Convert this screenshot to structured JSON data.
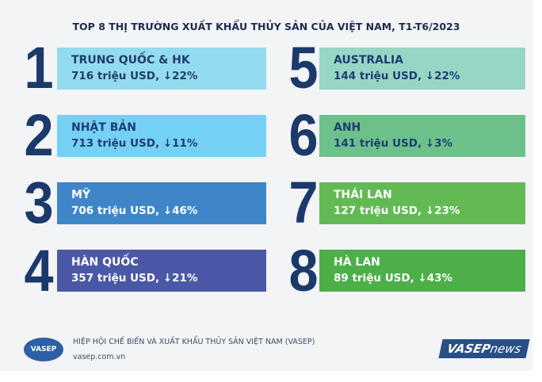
{
  "title": "TOP 8 THỊ TRƯỜNG XUẤT KHẨU THỦY SẢN CỦA VIỆT NAM, T1-T6/2023",
  "markets": [
    {
      "rank": "1",
      "name": "TRUNG QUỐC & HK",
      "detail": "716 triệu USD, ↓22%"
    },
    {
      "rank": "2",
      "name": "NHẬT BẢN",
      "detail": "713 triệu USD, ↓11%"
    },
    {
      "rank": "3",
      "name": "MỸ",
      "detail": "706 triệu USD, ↓46%"
    },
    {
      "rank": "4",
      "name": "HÀN QUỐC",
      "detail": "357 triệu USD, ↓21%"
    },
    {
      "rank": "5",
      "name": "AUSTRALIA",
      "detail": "144 triệu USD, ↓22%"
    },
    {
      "rank": "6",
      "name": "ANH",
      "detail": "141 triệu USD, ↓3%"
    },
    {
      "rank": "7",
      "name": "THÁI LAN",
      "detail": "127 triệu USD, ↓23%"
    },
    {
      "rank": "8",
      "name": "HÀ LAN",
      "detail": "89 triệu USD, ↓43%"
    }
  ],
  "footer": {
    "organization": "HIỆP HỘI CHẾ BIẾN VÀ XUẤT KHẨU THỦY SẢN VIỆT NAM (VASEP)",
    "website": "vasep.com.vn",
    "logo": "VASEP",
    "brand": "VASEP",
    "brand_suffix": "news"
  }
}
